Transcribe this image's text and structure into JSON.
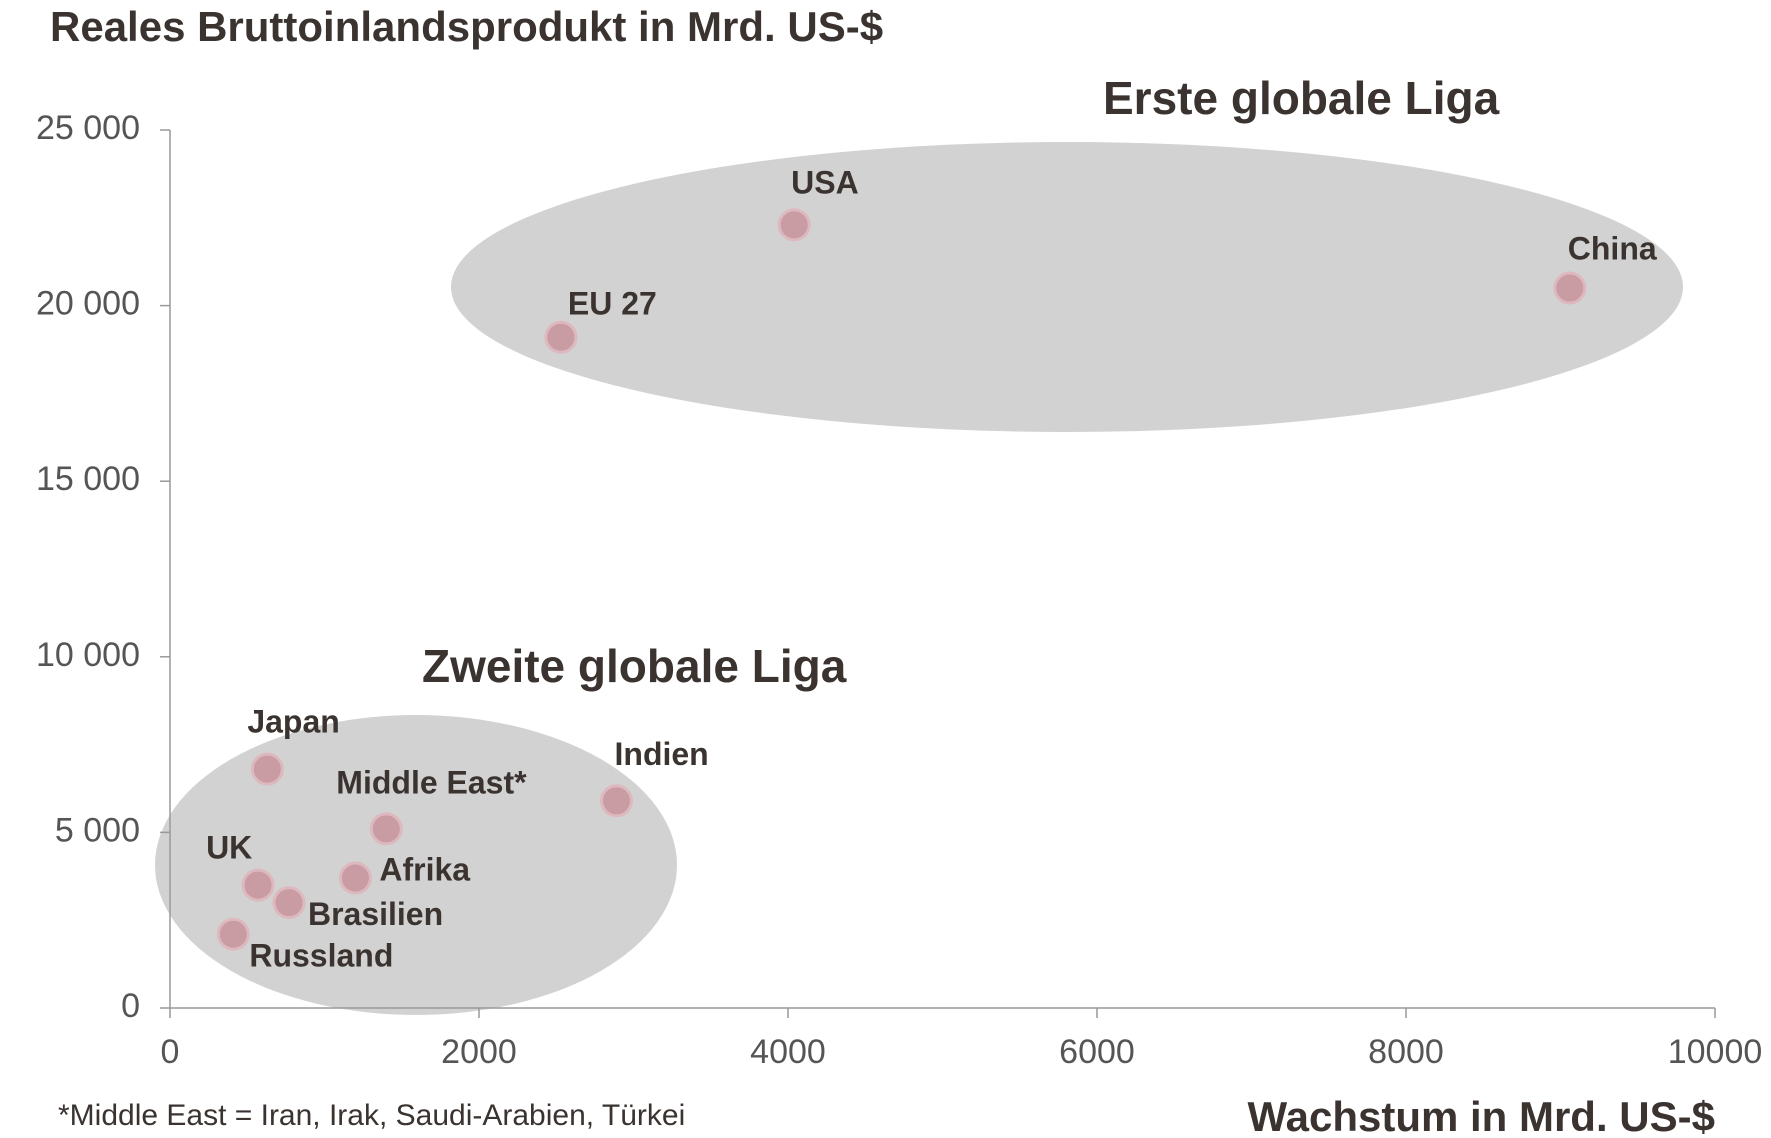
{
  "chart_data": {
    "type": "scatter",
    "title": "Reales Bruttoinlandsprodukt  in Mrd. US-$",
    "x_label": "Wachstum in Mrd. US-$",
    "footnote": "*Middle East = Iran, Irak, Saudi-Arabien, Türkei",
    "annotations": [
      "Erste globale Liga",
      "Zweite globale Liga"
    ],
    "color": "#c99ba3",
    "labels": [
      "USA",
      "China",
      "EU 27",
      "Japan",
      "Middle East*",
      "Indien",
      "UK",
      "Afrika",
      "Brasilien",
      "Russland"
    ],
    "x": [
      4040,
      9060,
      2530,
      630,
      1400,
      2890,
      570,
      1200,
      770,
      410
    ],
    "values": [
      22300,
      20500,
      19100,
      6800,
      5100,
      5900,
      3500,
      3700,
      3000,
      2100
    ],
    "xlim": [
      0,
      10000
    ],
    "xticks": [
      0,
      2000,
      4000,
      6000,
      8000,
      10000
    ],
    "ylim": [
      0,
      25000
    ],
    "yticks": [
      0,
      {
        "value": 5000,
        "label": "5 000"
      },
      {
        "value": 10000,
        "label": "10 000"
      },
      {
        "value": 15000,
        "label": "15 000"
      },
      {
        "value": 20000,
        "label": "20 000"
      },
      {
        "value": 25000,
        "label": "25 000"
      }
    ]
  }
}
